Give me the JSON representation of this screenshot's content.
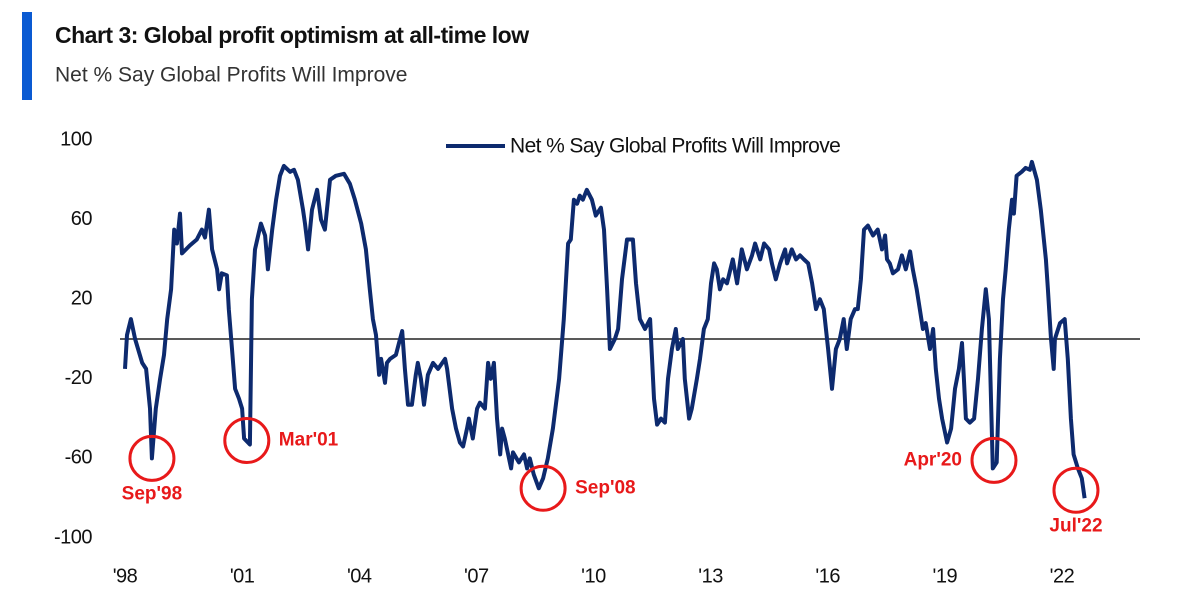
{
  "chart_data": {
    "type": "line",
    "title": "Chart 3: Global profit optimism at all-time low",
    "subtitle": "Net % Say Global Profits Will Improve",
    "x": [
      1998.0,
      1998.05,
      1998.15,
      1998.26,
      1998.44,
      1998.54,
      1998.64,
      1998.69,
      1998.79,
      1998.9,
      1999.0,
      1999.08,
      1999.18,
      1999.26,
      1999.33,
      1999.41,
      1999.46,
      1999.66,
      1999.84,
      1999.97,
      2000.05,
      2000.15,
      2000.23,
      2000.36,
      2000.41,
      2000.48,
      2000.61,
      2000.66,
      2000.74,
      2000.82,
      2000.92,
      2001.0,
      2001.05,
      2001.2,
      2001.25,
      2001.33,
      2001.48,
      2001.59,
      2001.66,
      2001.77,
      2001.87,
      2001.97,
      2002.07,
      2002.23,
      2002.33,
      2002.43,
      2002.56,
      2002.61,
      2002.69,
      2002.79,
      2002.92,
      2003.02,
      2003.12,
      2003.25,
      2003.4,
      2003.61,
      2003.76,
      2003.89,
      2004.05,
      2004.17,
      2004.27,
      2004.35,
      2004.43,
      2004.51,
      2004.56,
      2004.66,
      2004.71,
      2004.79,
      2004.94,
      2005.02,
      2005.1,
      2005.17,
      2005.25,
      2005.35,
      2005.45,
      2005.5,
      2005.58,
      2005.66,
      2005.76,
      2005.89,
      2006.02,
      2006.2,
      2006.25,
      2006.38,
      2006.48,
      2006.58,
      2006.66,
      2006.76,
      2006.81,
      2006.91,
      2007.02,
      2007.09,
      2007.22,
      2007.3,
      2007.37,
      2007.45,
      2007.53,
      2007.61,
      2007.66,
      2007.73,
      2007.89,
      2007.94,
      2008.09,
      2008.22,
      2008.3,
      2008.37,
      2008.47,
      2008.6,
      2008.71,
      2008.83,
      2008.96,
      2009.12,
      2009.24,
      2009.35,
      2009.42,
      2009.5,
      2009.58,
      2009.65,
      2009.73,
      2009.83,
      2009.96,
      2010.06,
      2010.19,
      2010.27,
      2010.35,
      2010.42,
      2010.55,
      2010.63,
      2010.73,
      2010.86,
      2011.01,
      2011.09,
      2011.19,
      2011.32,
      2011.45,
      2011.55,
      2011.63,
      2011.73,
      2011.83,
      2011.91,
      2012.01,
      2012.11,
      2012.16,
      2012.29,
      2012.34,
      2012.45,
      2012.52,
      2012.65,
      2012.73,
      2012.83,
      2012.93,
      2013.01,
      2013.09,
      2013.16,
      2013.24,
      2013.32,
      2013.42,
      2013.57,
      2013.68,
      2013.75,
      2013.8,
      2013.93,
      2014.06,
      2014.14,
      2014.27,
      2014.37,
      2014.5,
      2014.57,
      2014.67,
      2014.78,
      2014.91,
      2014.96,
      2015.08,
      2015.19,
      2015.29,
      2015.39,
      2015.5,
      2015.6,
      2015.7,
      2015.8,
      2015.9,
      2016.01,
      2016.11,
      2016.21,
      2016.31,
      2016.41,
      2016.49,
      2016.59,
      2016.7,
      2016.77,
      2016.85,
      2016.93,
      2017.03,
      2017.16,
      2017.28,
      2017.39,
      2017.47,
      2017.52,
      2017.59,
      2017.67,
      2017.8,
      2017.9,
      2018.0,
      2018.11,
      2018.18,
      2018.28,
      2018.36,
      2018.44,
      2018.51,
      2018.62,
      2018.7,
      2018.77,
      2018.85,
      2018.93,
      2019.06,
      2019.16,
      2019.26,
      2019.36,
      2019.44,
      2019.49,
      2019.54,
      2019.64,
      2019.75,
      2019.85,
      2019.95,
      2020.05,
      2020.13,
      2020.23,
      2020.33,
      2020.41,
      2020.49,
      2020.56,
      2020.64,
      2020.72,
      2020.77,
      2020.84,
      2020.97,
      2021.07,
      2021.18,
      2021.23,
      2021.36,
      2021.46,
      2021.59,
      2021.64,
      2021.72,
      2021.79,
      2021.82,
      2021.95,
      2022.07,
      2022.15,
      2022.23,
      2022.3,
      2022.41,
      2022.51,
      2022.58
    ],
    "series": [
      {
        "name": "Net % Say Global Profits Will Improve",
        "color": "#0d2a6e",
        "values": [
          -15,
          2,
          10,
          0,
          -12,
          -15,
          -35,
          -60,
          -35,
          -20,
          -8,
          10,
          25,
          55,
          48,
          63,
          43,
          47,
          50,
          55,
          51,
          65,
          45,
          35,
          25,
          33,
          32,
          15,
          -5,
          -25,
          -30,
          -35,
          -50,
          -53,
          20,
          45,
          58,
          52,
          35,
          55,
          70,
          82,
          87,
          84,
          85,
          80,
          65,
          58,
          45,
          65,
          75,
          60,
          55,
          80,
          82,
          83,
          78,
          70,
          58,
          45,
          25,
          10,
          2,
          -18,
          -10,
          -22,
          -12,
          -10,
          -8,
          -2,
          4,
          -15,
          -33,
          -33,
          -18,
          -12,
          -20,
          -33,
          -18,
          -12,
          -15,
          -10,
          -15,
          -35,
          -45,
          -52,
          -54,
          -45,
          -40,
          -50,
          -35,
          -32,
          -35,
          -12,
          -20,
          -12,
          -40,
          -58,
          -45,
          -50,
          -65,
          -57,
          -62,
          -58,
          -65,
          -60,
          -68,
          -75,
          -70,
          -60,
          -45,
          -20,
          10,
          48,
          50,
          70,
          68,
          72,
          70,
          75,
          70,
          62,
          66,
          55,
          25,
          -5,
          0,
          5,
          30,
          50,
          50,
          28,
          10,
          5,
          10,
          -30,
          -43,
          -40,
          -42,
          -20,
          -5,
          5,
          -5,
          0,
          -20,
          -40,
          -35,
          -20,
          -10,
          5,
          10,
          28,
          38,
          35,
          25,
          30,
          28,
          40,
          28,
          38,
          45,
          35,
          42,
          48,
          40,
          48,
          45,
          38,
          30,
          38,
          45,
          38,
          45,
          40,
          42,
          40,
          38,
          28,
          15,
          20,
          15,
          -5,
          -25,
          -5,
          0,
          10,
          -5,
          10,
          15,
          15,
          30,
          55,
          57,
          52,
          55,
          45,
          52,
          40,
          38,
          33,
          35,
          42,
          35,
          44,
          35,
          25,
          15,
          5,
          8,
          -5,
          5,
          -15,
          -30,
          -40,
          -52,
          -45,
          -25,
          -15,
          -2,
          -20,
          -40,
          -42,
          -40,
          -20,
          5,
          25,
          10,
          -65,
          -62,
          -10,
          20,
          35,
          55,
          70,
          63,
          82,
          84,
          86,
          85,
          89,
          80,
          65,
          40,
          25,
          0,
          -15,
          0,
          8,
          10,
          -10,
          -40,
          -58,
          -65,
          -70,
          -80
        ]
      }
    ],
    "xlim": [
      1998,
      2024
    ],
    "xticks": [
      {
        "value": 1998,
        "label": "'98"
      },
      {
        "value": 2001,
        "label": "'01"
      },
      {
        "value": 2004,
        "label": "'04"
      },
      {
        "value": 2007,
        "label": "'07"
      },
      {
        "value": 2010,
        "label": "'10"
      },
      {
        "value": 2013,
        "label": "'13"
      },
      {
        "value": 2016,
        "label": "'16"
      },
      {
        "value": 2019,
        "label": "'19"
      },
      {
        "value": 2022,
        "label": "'22"
      }
    ],
    "ylim": [
      -100,
      100
    ],
    "yticks": [
      100,
      60,
      20,
      -20,
      -60,
      -100
    ],
    "legend": "top",
    "annotations": [
      {
        "label": "Sep'98",
        "x": 1998.69,
        "y": -60,
        "label_position": "below",
        "color": "#e8191a"
      },
      {
        "label": "Mar'01",
        "x": 2001.12,
        "y": -51,
        "label_position": "right",
        "color": "#e8191a"
      },
      {
        "label": "Sep'08",
        "x": 2008.71,
        "y": -75,
        "label_position": "right",
        "color": "#e8191a"
      },
      {
        "label": "Apr'20",
        "x": 2020.26,
        "y": -61,
        "label_position": "left",
        "color": "#e8191a"
      },
      {
        "label": "Jul'22",
        "x": 2022.36,
        "y": -76,
        "label_position": "below",
        "color": "#e8191a"
      }
    ]
  }
}
